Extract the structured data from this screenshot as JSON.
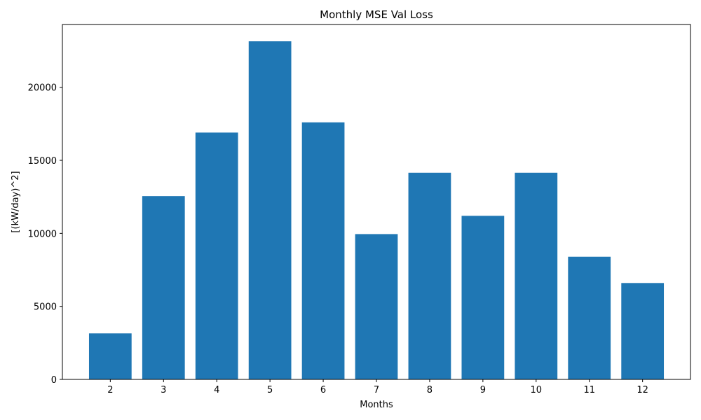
{
  "chart_data": {
    "type": "bar",
    "title": "Monthly MSE Val Loss",
    "xlabel": "Months",
    "ylabel": "[(kW/day)^2]",
    "categories": [
      "2",
      "3",
      "4",
      "5",
      "6",
      "7",
      "8",
      "9",
      "10",
      "11",
      "12"
    ],
    "values": [
      3150,
      12550,
      16900,
      23150,
      17600,
      9950,
      14150,
      11200,
      14150,
      8400,
      6600
    ],
    "ylim": [
      0,
      24300
    ],
    "yticks": [
      0,
      5000,
      10000,
      15000,
      20000
    ],
    "ytick_labels": [
      "0",
      "5000",
      "10000",
      "15000",
      "20000"
    ],
    "bar_color": "#1f77b4",
    "grid": false,
    "legend": null
  }
}
